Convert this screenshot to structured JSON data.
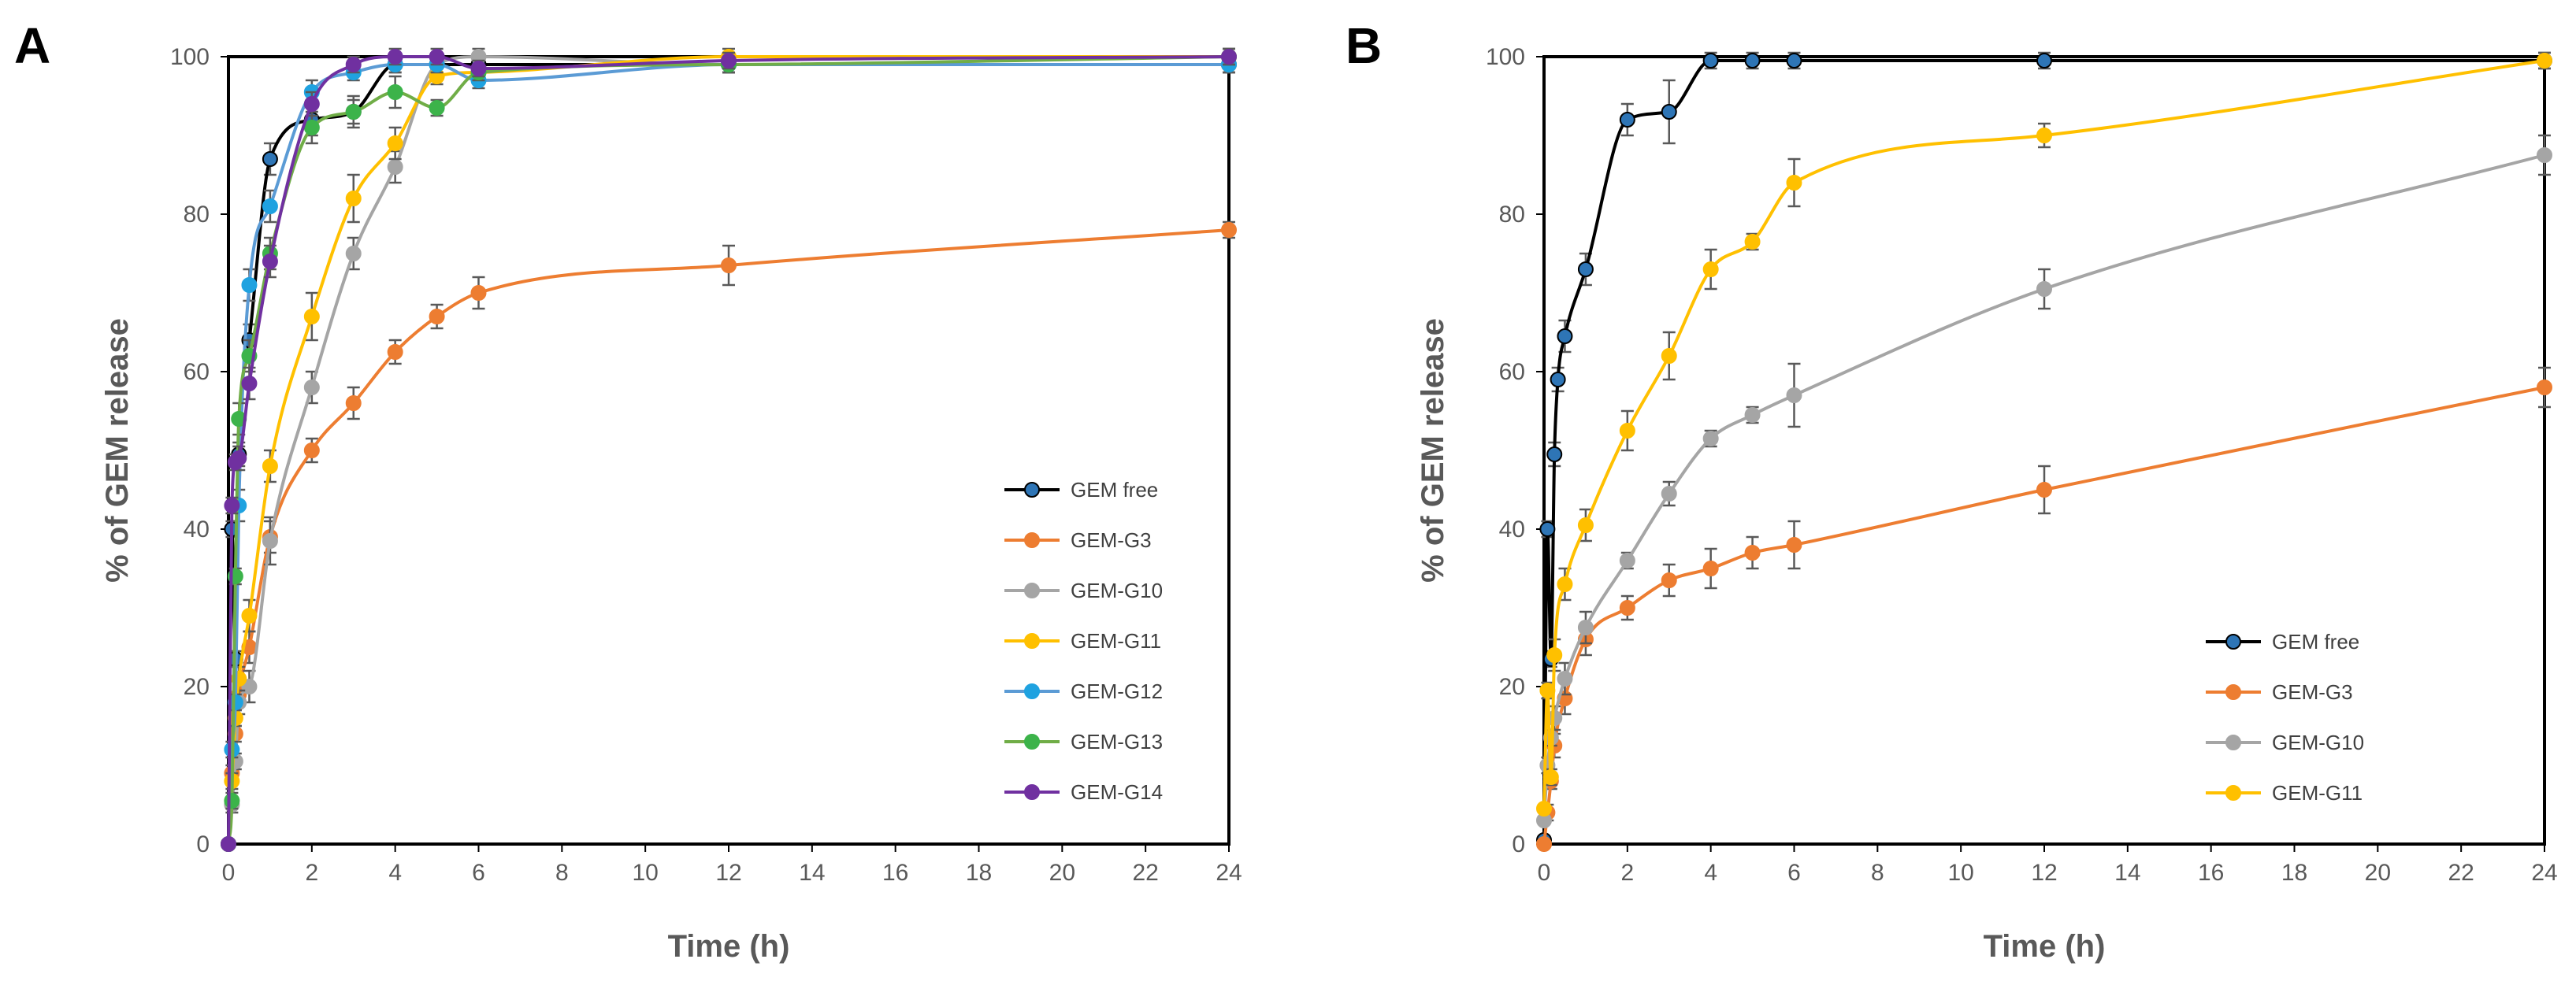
{
  "chart_data": [
    {
      "type": "line",
      "panel_label": "A",
      "xlabel": "Time (h)",
      "ylabel": "% of GEM release",
      "xlim": [
        0,
        24
      ],
      "ylim": [
        0,
        100
      ],
      "xticks": [
        "0",
        "2",
        "4",
        "6",
        "8",
        "10",
        "12",
        "14",
        "16",
        "18",
        "20",
        "22",
        "24"
      ],
      "yticks": [
        "0",
        "20",
        "40",
        "60",
        "80",
        "100"
      ],
      "legend_position": "right",
      "series": [
        {
          "name": "GEM free",
          "color": "#000000",
          "marker": "#2E75B6",
          "x": [
            0,
            0.083,
            0.167,
            0.25,
            0.5,
            1,
            2,
            3,
            4,
            5,
            6,
            12,
            24
          ],
          "y": [
            0,
            40,
            23.5,
            49.5,
            64,
            87,
            92,
            93,
            99,
            99,
            99,
            99,
            99
          ],
          "err": [
            0,
            1,
            1,
            1.5,
            2,
            2,
            2,
            2,
            1,
            1,
            1,
            1,
            1
          ]
        },
        {
          "name": "GEM-G3",
          "color": "#ED7D31",
          "marker": "#ED7D31",
          "x": [
            0,
            0.083,
            0.167,
            0.25,
            0.5,
            1,
            2,
            3,
            4,
            5,
            6,
            12,
            24
          ],
          "y": [
            0,
            9,
            14,
            19,
            25,
            39,
            50,
            56,
            62.5,
            67,
            70,
            73.5,
            78
          ],
          "err": [
            0,
            1,
            1,
            1.5,
            2,
            2,
            1.5,
            2,
            1.5,
            1.5,
            2,
            2.5,
            1
          ]
        },
        {
          "name": "GEM-G10",
          "color": "#A5A5A5",
          "marker": "#A5A5A5",
          "x": [
            0,
            0.083,
            0.167,
            0.25,
            0.5,
            1,
            2,
            3,
            4,
            5,
            6,
            12,
            24
          ],
          "y": [
            0,
            5,
            10.5,
            18,
            20,
            38.5,
            58,
            75,
            86,
            99,
            100,
            99,
            99
          ],
          "err": [
            0,
            1,
            1,
            1.5,
            2,
            3,
            2,
            2,
            2,
            1,
            1,
            1,
            1
          ]
        },
        {
          "name": "GEM-G11",
          "color": "#FFC000",
          "marker": "#FFC000",
          "x": [
            0,
            0.083,
            0.167,
            0.25,
            0.5,
            1,
            2,
            3,
            4,
            5,
            6,
            12,
            24
          ],
          "y": [
            0,
            8,
            16,
            21,
            29,
            48,
            67,
            82,
            89,
            97.5,
            98,
            100,
            100
          ],
          "err": [
            0,
            1,
            1,
            1.5,
            2,
            2,
            3,
            3,
            2,
            1,
            1,
            1,
            1
          ]
        },
        {
          "name": "GEM-G12",
          "color": "#5B9BD5",
          "marker": "#1FA2E0",
          "x": [
            0,
            0.083,
            0.167,
            0.25,
            0.5,
            1,
            2,
            3,
            4,
            5,
            6,
            12,
            24
          ],
          "y": [
            0,
            12,
            18,
            43,
            71,
            81,
            95.5,
            98,
            99,
            99,
            97,
            99,
            99
          ],
          "err": [
            0,
            1,
            1,
            2,
            2,
            2,
            1.5,
            1,
            1,
            1,
            1,
            1,
            1
          ]
        },
        {
          "name": "GEM-G13",
          "color": "#70AD47",
          "marker": "#3CB34A",
          "x": [
            0,
            0.083,
            0.167,
            0.25,
            0.5,
            1,
            2,
            3,
            4,
            5,
            6,
            12,
            24
          ],
          "y": [
            0,
            5.5,
            34,
            54,
            62,
            75,
            91,
            93,
            95.5,
            93.5,
            98,
            99,
            100
          ],
          "err": [
            0,
            1,
            1,
            2,
            2,
            2,
            2,
            1.5,
            2,
            1,
            1,
            1,
            1
          ]
        },
        {
          "name": "GEM-G14",
          "color": "#7030A0",
          "marker": "#7030A0",
          "x": [
            0,
            0.083,
            0.167,
            0.25,
            0.5,
            1,
            2,
            3,
            4,
            5,
            6,
            12,
            24
          ],
          "y": [
            0,
            43,
            48.5,
            49,
            58.5,
            74,
            94,
            99,
            100,
            100,
            98.5,
            99.5,
            100
          ],
          "err": [
            0,
            1,
            1,
            1.5,
            2,
            2,
            1.5,
            1,
            1,
            1,
            1,
            1,
            1
          ]
        }
      ]
    },
    {
      "type": "line",
      "panel_label": "B",
      "xlabel": "Time (h)",
      "ylabel": "% of GEM release",
      "xlim": [
        0,
        24
      ],
      "ylim": [
        0,
        100
      ],
      "xticks": [
        "0",
        "2",
        "4",
        "6",
        "8",
        "10",
        "12",
        "14",
        "16",
        "18",
        "20",
        "22",
        "24"
      ],
      "yticks": [
        "0",
        "20",
        "40",
        "60",
        "80",
        "100"
      ],
      "legend_position": "bottom-right",
      "series": [
        {
          "name": "GEM free",
          "color": "#000000",
          "marker": "#2E75B6",
          "x": [
            0,
            0.083,
            0.167,
            0.25,
            0.333,
            0.5,
            1,
            2,
            3,
            4,
            5,
            6,
            12,
            24
          ],
          "y": [
            0.5,
            40,
            23.5,
            49.5,
            59,
            64.5,
            73,
            92,
            93,
            99.5,
            99.5,
            99.5,
            99.5,
            99.5
          ],
          "err": [
            0,
            1,
            1,
            1.5,
            1.5,
            2,
            2,
            2,
            4,
            1,
            1,
            1,
            1,
            1
          ]
        },
        {
          "name": "GEM-G3",
          "color": "#ED7D31",
          "marker": "#ED7D31",
          "x": [
            0,
            0.083,
            0.167,
            0.25,
            0.5,
            1,
            2,
            3,
            4,
            5,
            6,
            12,
            24
          ],
          "y": [
            0,
            4,
            8,
            12.5,
            18.5,
            26,
            30,
            33.5,
            35,
            37,
            38,
            45,
            58
          ],
          "err": [
            0,
            1,
            1,
            1.5,
            2,
            2,
            1.5,
            2,
            2.5,
            2,
            3,
            3,
            2.5
          ]
        },
        {
          "name": "GEM-G10",
          "color": "#A5A5A5",
          "marker": "#A5A5A5",
          "x": [
            0,
            0.083,
            0.167,
            0.25,
            0.5,
            1,
            2,
            3,
            4,
            5,
            6,
            12,
            24
          ],
          "y": [
            3,
            10,
            13.5,
            16,
            21,
            27.5,
            36,
            44.5,
            51.5,
            54.5,
            57,
            70.5,
            87.5
          ],
          "err": [
            0,
            1,
            1,
            1.5,
            2,
            2,
            1,
            1.5,
            1,
            1,
            4,
            2.5,
            2.5
          ]
        },
        {
          "name": "GEM-G11",
          "color": "#FFC000",
          "marker": "#FFC000",
          "x": [
            0,
            0.083,
            0.167,
            0.25,
            0.5,
            1,
            2,
            3,
            4,
            5,
            6,
            12,
            24
          ],
          "y": [
            4.5,
            19.5,
            8.5,
            24,
            33,
            40.5,
            52.5,
            62,
            73,
            76.5,
            84,
            90,
            99.5
          ],
          "err": [
            0,
            1,
            1,
            2,
            2,
            2,
            2.5,
            3,
            2.5,
            1,
            3,
            1.5,
            1
          ]
        }
      ]
    }
  ]
}
